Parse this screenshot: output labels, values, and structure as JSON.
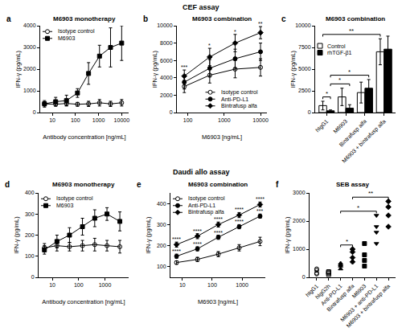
{
  "section_titles": [
    "CEF assay",
    "Daudi allo assay"
  ],
  "chart_data": [
    {
      "panel": "a",
      "title": "M6903 monotherapy",
      "type": "line",
      "log": "x",
      "x_label": "Antibody concentration [ng/mL]",
      "y_label": "IFN-γ (pg/mL)",
      "xlim": [
        3,
        20000
      ],
      "xticks": [
        10,
        100,
        1000,
        10000
      ],
      "ylim": [
        0,
        4000
      ],
      "yticks": [
        0,
        1000,
        2000,
        3000,
        4000
      ],
      "legend": "top left",
      "x": [
        4.6,
        14,
        41,
        123,
        370,
        1100,
        3300,
        10000
      ],
      "series": [
        {
          "name": "Isotype control",
          "color": "#000000",
          "marker": "circle-open",
          "line_style": "solid",
          "values": [
            400,
            380,
            420,
            380,
            400,
            450,
            400,
            450
          ],
          "errors": [
            100,
            80,
            100,
            90,
            120,
            150,
            120,
            150
          ]
        },
        {
          "name": "M6903",
          "color": "#000000",
          "marker": "square",
          "line_style": "solid",
          "values": [
            400,
            500,
            550,
            900,
            1800,
            2600,
            3000,
            3200
          ],
          "errors": [
            150,
            200,
            250,
            200,
            500,
            500,
            900,
            800
          ]
        }
      ]
    },
    {
      "panel": "b",
      "title": "M6903 combination",
      "type": "line",
      "log": "x",
      "x_label": "M6903 [ng/mL]",
      "y_label": "IFN-γ (pg/mL)",
      "xlim": [
        50,
        15000
      ],
      "xticks": [
        100,
        1000,
        10000
      ],
      "ylim": [
        0,
        10000
      ],
      "yticks": [
        0,
        2000,
        4000,
        6000,
        8000,
        10000
      ],
      "legend": "bottom right",
      "x": [
        80,
        400,
        2000,
        10000
      ],
      "series": [
        {
          "name": "Isotype control",
          "color": "#000000",
          "marker": "circle-open",
          "line_style": "solid",
          "values": [
            3000,
            4300,
            5000,
            5200
          ],
          "errors": [
            700,
            900,
            1000,
            1000
          ]
        },
        {
          "name": "Anti-PD-L1",
          "color": "#000000",
          "marker": "circle",
          "line_style": "solid",
          "values": [
            3500,
            5100,
            6200,
            7000
          ],
          "errors": [
            800,
            1000,
            1100,
            1000
          ]
        },
        {
          "name": "Bintrafusp alfa",
          "color": "#000000",
          "marker": "diamond",
          "line_style": "solid",
          "values": [
            4200,
            6400,
            8000,
            9200
          ],
          "errors": [
            700,
            1000,
            1000,
            700
          ],
          "significance": [
            "***",
            "*",
            "*",
            "**"
          ]
        }
      ]
    },
    {
      "panel": "c",
      "title": "M6903 combination",
      "type": "bar",
      "y_label": "IFN-γ (pg/mL)",
      "ylim": [
        0,
        10000
      ],
      "yticks": [
        0,
        2500,
        5000,
        7500,
        10000
      ],
      "legend": "top left",
      "categories": [
        "hIgG1",
        "M6903",
        "Bintrafusp alfa",
        "M6903 + bintrafusp alfa"
      ],
      "series": [
        {
          "name": "Control",
          "color": "#ffffff",
          "values": [
            800,
            1800,
            2300,
            7000
          ],
          "errors": [
            500,
            1000,
            1200,
            1500
          ]
        },
        {
          "name": "rhTGF-β1",
          "color": "#000000",
          "values": [
            200,
            500,
            2800,
            7300
          ],
          "errors": [
            100,
            400,
            1000,
            1500
          ]
        }
      ],
      "comparisons": [
        {
          "from": [
            "hIgG1",
            "Control"
          ],
          "to": [
            "hIgG1",
            "rhTGF-β1"
          ],
          "label": "*"
        },
        {
          "from": [
            "hIgG1",
            "rhTGF-β1"
          ],
          "to": [
            "M6903",
            "rhTGF-β1"
          ],
          "label": "*"
        },
        {
          "from": [
            "hIgG1",
            "rhTGF-β1"
          ],
          "to": [
            "Bintrafusp alfa",
            "rhTGF-β1"
          ],
          "label": "*"
        },
        {
          "from": [
            "hIgG1",
            "Control"
          ],
          "to": [
            "M6903 + bintrafusp alfa",
            "Control"
          ],
          "label": "**"
        }
      ]
    },
    {
      "panel": "d",
      "title": "M6903 monotherapy",
      "type": "line",
      "log": "x",
      "x_label": "Antibody concentration [ng/mL]",
      "y_label": "IFN-γ (pg/mL)",
      "xlim": [
        3,
        8000
      ],
      "xticks": [
        10,
        100,
        1000
      ],
      "ylim": [
        0,
        400
      ],
      "yticks": [
        0,
        100,
        200,
        300,
        400
      ],
      "legend": "top left",
      "x": [
        5,
        15,
        45,
        140,
        410,
        1200,
        3700
      ],
      "series": [
        {
          "name": "Isotype control",
          "color": "#000000",
          "marker": "circle-open",
          "line_style": "solid",
          "values": [
            140,
            150,
            145,
            150,
            155,
            150,
            145
          ],
          "errors": [
            20,
            25,
            20,
            25,
            30,
            25,
            30
          ]
        },
        {
          "name": "M6903",
          "color": "#000000",
          "marker": "square",
          "line_style": "solid",
          "values": [
            130,
            170,
            200,
            240,
            280,
            300,
            265
          ],
          "errors": [
            20,
            30,
            35,
            40,
            40,
            30,
            45
          ]
        }
      ]
    },
    {
      "panel": "e",
      "title": "M6903 combination",
      "type": "line",
      "log": "x",
      "x_label": "M6903 [ng/mL]",
      "y_label": "IFN-γ (pg/mL)",
      "xlim": [
        4,
        6000
      ],
      "xticks": [
        10,
        100,
        1000
      ],
      "ylim": [
        50,
        450
      ],
      "yticks": [
        100,
        200,
        300,
        400
      ],
      "legend": "top left",
      "x": [
        6.4,
        32,
        160,
        800,
        4000
      ],
      "series": [
        {
          "name": "Isotype control",
          "color": "#000000",
          "marker": "circle-open",
          "line_style": "solid",
          "values": [
            120,
            135,
            160,
            190,
            220
          ],
          "errors": [
            8,
            10,
            12,
            15,
            20
          ]
        },
        {
          "name": "Anti-PD-L1",
          "color": "#000000",
          "marker": "circle",
          "line_style": "solid",
          "values": [
            150,
            185,
            240,
            290,
            340
          ],
          "errors": [
            10,
            10,
            10,
            10,
            10
          ],
          "significance": [
            "****",
            "****",
            "****",
            "****",
            "***"
          ]
        },
        {
          "name": "Bintrafusp alfa",
          "color": "#000000",
          "marker": "diamond",
          "line_style": "solid",
          "values": [
            205,
            245,
            300,
            345,
            395
          ],
          "errors": [
            12,
            12,
            12,
            12,
            12
          ],
          "significance": [
            "****",
            "****",
            "****",
            "****",
            "****"
          ]
        }
      ]
    },
    {
      "panel": "f",
      "title": "SEB assay",
      "type": "strip",
      "y_label": "IFN-γ (pg/mL)",
      "ylim": [
        0,
        3000
      ],
      "yticks": [
        0,
        1000,
        2000,
        3000
      ],
      "groups": [
        {
          "category": "hIgG1",
          "color": "#000000",
          "marker": "circle-open",
          "values": [
            150,
            250,
            300,
            120
          ]
        },
        {
          "category": "hIgG2h",
          "color": "#000000",
          "marker": "square-open",
          "values": [
            100,
            150,
            200,
            180
          ]
        },
        {
          "category": "Anti-PD-L1",
          "color": "#000000",
          "marker": "triangle-up",
          "values": [
            300,
            400,
            500,
            450
          ]
        },
        {
          "category": "Bintrafusp alfa",
          "color": "#000000",
          "marker": "diamond",
          "values": [
            550,
            700,
            900,
            1000
          ]
        },
        {
          "category": "M6903",
          "color": "#000000",
          "marker": "square",
          "values": [
            400,
            600,
            800,
            1200
          ]
        },
        {
          "category": "M6903 + anti-PD-L1",
          "color": "#000000",
          "marker": "triangle-down",
          "values": [
            1200,
            1600,
            1800,
            2200
          ]
        },
        {
          "category": "M6903 + bintrafusp alfa",
          "color": "#000000",
          "marker": "diamond",
          "values": [
            1800,
            2200,
            2500,
            2700
          ]
        }
      ],
      "comparisons": [
        {
          "from": "Anti-PD-L1",
          "to": "Bintrafusp alfa",
          "label": "*"
        },
        {
          "from": "Anti-PD-L1",
          "to": "M6903 + anti-PD-L1",
          "label": "*"
        },
        {
          "from": "Bintrafusp alfa",
          "to": "M6903 + bintrafusp alfa",
          "label": "**"
        }
      ]
    }
  ]
}
